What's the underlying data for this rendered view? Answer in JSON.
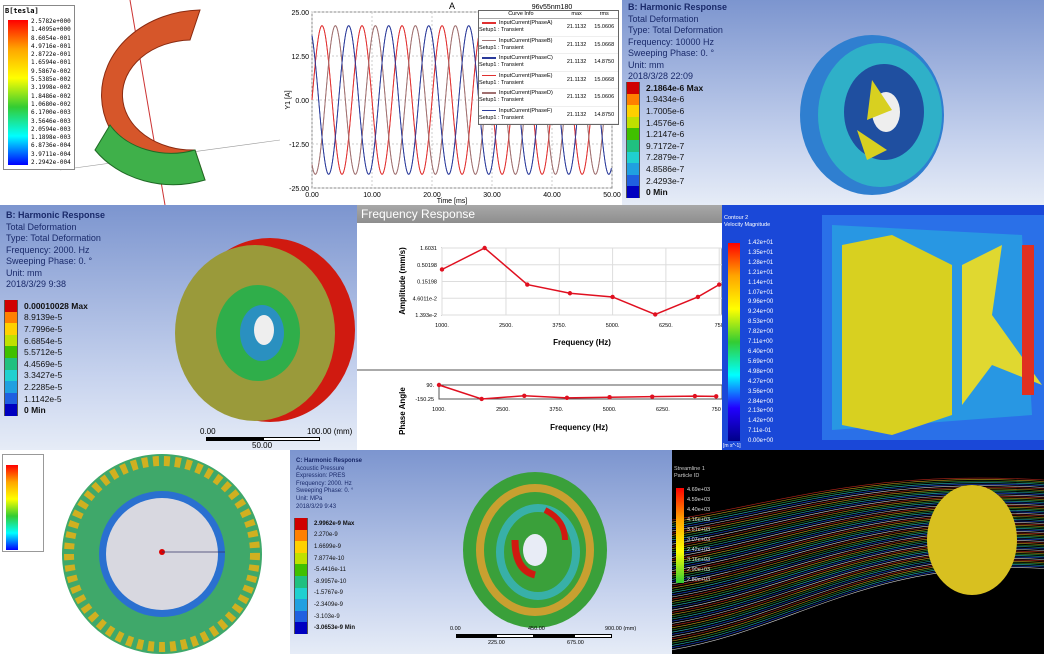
{
  "panel1": {
    "legend_title": "B[tesla]",
    "legend_values": [
      "2.5782e+000",
      "1.4095e+000",
      "8.6054e-001",
      "4.9716e-001",
      "2.8722e-001",
      "1.6594e-001",
      "9.5867e-002",
      "5.5385e-002",
      "3.1998e-002",
      "1.8486e-002",
      "1.0680e-002",
      "6.1700e-003",
      "3.5646e-003",
      "2.0594e-003",
      "1.1898e-003",
      "6.8736e-004",
      "3.9711e-004",
      "2.2942e-004"
    ]
  },
  "panel2": {
    "title": "A",
    "subtitle": "96v55nm180",
    "ylabel": "Y1 [A]",
    "xlabel": "Time [ms]",
    "legend": {
      "headers": [
        "Curve Info",
        "max",
        "rms"
      ],
      "rows": [
        {
          "name": "InputCurrent(PhaseA)",
          "sub": "Setup1 : Transient",
          "max": "21.1132",
          "rms": "15.0606",
          "color": "#e03030"
        },
        {
          "name": "InputCurrent(PhaseB)",
          "sub": "Setup1 : Transient",
          "max": "21.1132",
          "rms": "15.0668",
          "color": "#a07070"
        },
        {
          "name": "InputCurrent(PhaseC)",
          "sub": "Setup1 : Transient",
          "max": "21.1132",
          "rms": "14.8750",
          "color": "#2a3a9a"
        },
        {
          "name": "InputCurrent(PhaseE)",
          "sub": "Setup1 : Transient",
          "max": "21.1132",
          "rms": "15.0668",
          "color": "#e03030"
        },
        {
          "name": "InputCurrent(PhaseD)",
          "sub": "Setup1 : Transient",
          "max": "21.1132",
          "rms": "15.0606",
          "color": "#a07070"
        },
        {
          "name": "InputCurrent(PhaseF)",
          "sub": "Setup1 : Transient",
          "max": "21.1132",
          "rms": "14.8750",
          "color": "#2a3a9a"
        }
      ]
    }
  },
  "panel3": {
    "lines": [
      "B: Harmonic Response",
      "Total Deformation",
      "Type: Total Deformation",
      "Frequency: 10000 Hz",
      "Sweeping Phase: 0. °",
      "Unit: mm",
      "2018/3/28 22:09"
    ],
    "legend": [
      "2.1864e-6 Max",
      "1.9434e-6",
      "1.7005e-6",
      "1.4576e-6",
      "1.2147e-6",
      "9.7172e-7",
      "7.2879e-7",
      "4.8586e-7",
      "2.4293e-7",
      "0 Min"
    ]
  },
  "panel4": {
    "lines": [
      "B: Harmonic Response",
      "Total Deformation",
      "Type: Total Deformation",
      "Frequency: 2000. Hz",
      "Sweeping Phase: 0. °",
      "Unit: mm",
      "2018/3/29 9:38"
    ],
    "legend": [
      "0.00010028 Max",
      "8.9139e-5",
      "7.7996e-5",
      "6.6854e-5",
      "5.5712e-5",
      "4.4569e-5",
      "3.3427e-5",
      "2.2285e-5",
      "1.1142e-5",
      "0 Min"
    ],
    "scale": [
      "0.00",
      "100.00 (mm)",
      "50.00"
    ]
  },
  "panel5": {
    "title": "Frequency Response"
  },
  "panel6": {
    "legend_title": [
      "Contour 2",
      "Velocity Magnitude"
    ],
    "legend": [
      "1.42e+01",
      "1.35e+01",
      "1.28e+01",
      "1.21e+01",
      "1.14e+01",
      "1.07e+01",
      "9.96e+00",
      "9.24e+00",
      "8.53e+00",
      "7.82e+00",
      "7.11e+00",
      "6.40e+00",
      "5.69e+00",
      "4.98e+00",
      "4.27e+00",
      "3.56e+00",
      "2.84e+00",
      "2.13e+00",
      "1.42e+00",
      "7.11e-01",
      "0.00e+00"
    ],
    "unit": "[m s^-1]"
  },
  "panel8": {
    "lines": [
      "C: Harmonic Response",
      "Acoustic Pressure",
      "Expression: PRES",
      "Frequency: 2000. Hz",
      "Sweeping Phase: 0. °",
      "Unit: MPa",
      "2018/3/29 9:43"
    ],
    "legend": [
      "2.9962e-9 Max",
      "2.270e-9",
      "1.6699e-9",
      "7.8774e-10",
      "-5.4416e-11",
      "-8.9957e-10",
      "-1.5767e-9",
      "-2.3409e-9",
      "-3.103e-9",
      "-3.0653e-9 Min"
    ],
    "scale": [
      "0.00",
      "450.00",
      "900.00 (mm)",
      "225.00",
      "675.00"
    ]
  },
  "panel9": {
    "legend_title": [
      "Streamline 1",
      "Particle ID"
    ],
    "legend": [
      "4.69e+03",
      "4.59e+03",
      "4.40e+03",
      "4.16e+03",
      "3.51e+03",
      "3.07e+03",
      "2.42e+03",
      "3.16e+03",
      "2.90e+03",
      "2.80e+03"
    ]
  },
  "chart_data": [
    {
      "type": "line",
      "title": "A",
      "xlabel": "Time [ms]",
      "ylabel": "Y1 [A]",
      "xlim": [
        0,
        50
      ],
      "ylim": [
        -25,
        25
      ],
      "xticks": [
        "0.00",
        "10.00",
        "20.00",
        "30.00",
        "40.00",
        "50.00"
      ],
      "yticks": [
        "25.00",
        "12.50",
        "0.00",
        "-12.50",
        "-25.00"
      ],
      "amplitude": 21.1132,
      "period_ms": 6.67,
      "grid": true,
      "legend": "top-right",
      "series": [
        {
          "name": "InputCurrent(PhaseA)",
          "phase_deg": 0
        },
        {
          "name": "InputCurrent(PhaseB)",
          "phase_deg": -120
        },
        {
          "name": "InputCurrent(PhaseC)",
          "phase_deg": -240
        },
        {
          "name": "InputCurrent(PhaseE)",
          "phase_deg": 0
        },
        {
          "name": "InputCurrent(PhaseD)",
          "phase_deg": -120
        },
        {
          "name": "InputCurrent(PhaseF)",
          "phase_deg": -240
        }
      ]
    },
    {
      "type": "line",
      "title": "Frequency Response",
      "xlabel": "Frequency (Hz)",
      "ylabel": "Amplitude (mm/s)",
      "yscale": "log",
      "xticks": [
        "1000.",
        "2500.",
        "3750.",
        "5000.",
        "6250.",
        "750"
      ],
      "yticks": [
        "1.6031",
        "0.50198",
        "0.15198",
        "4.6011e-2",
        "1.393e-2"
      ],
      "x": [
        1000,
        2000,
        3000,
        4000,
        5000,
        6000,
        7000,
        7500
      ],
      "values": [
        0.35,
        1.6031,
        0.12,
        0.065,
        0.05,
        0.0145,
        0.05,
        0.12
      ],
      "color": "#e01020"
    },
    {
      "type": "line",
      "xlabel": "Frequency (Hz)",
      "ylabel": "Phase Angle",
      "ylim": [
        -150.25,
        90
      ],
      "xticks": [
        "1000.",
        "2500.",
        "3750.",
        "5000.",
        "6250.",
        "750"
      ],
      "yticks": [
        "90.",
        "-150.25"
      ],
      "x": [
        1000,
        2000,
        3000,
        4000,
        5000,
        6000,
        7000,
        7500
      ],
      "values": [
        90,
        -150,
        -95,
        -130,
        -120,
        -110,
        -100,
        -105
      ],
      "color": "#e01020"
    }
  ]
}
